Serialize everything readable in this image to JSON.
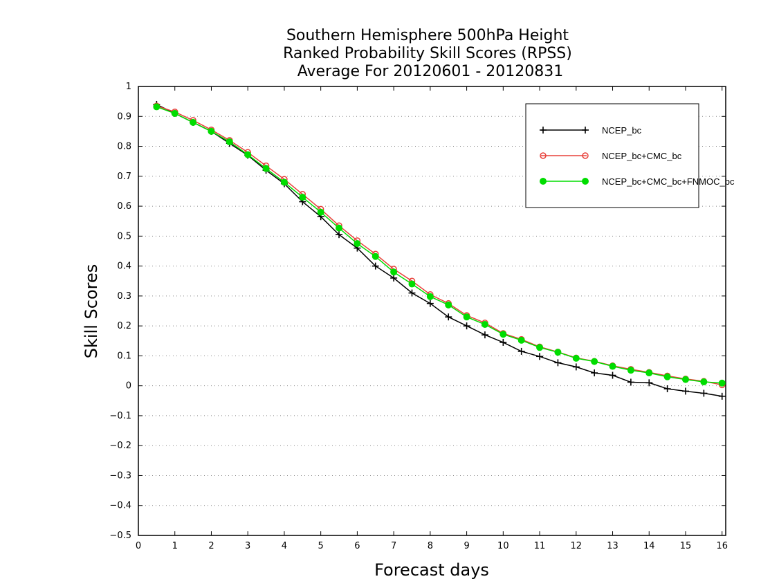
{
  "chart_data": {
    "type": "line",
    "title_lines": [
      "Southern Hemisphere 500hPa Height",
      "Ranked Probability Skill Scores (RPSS)",
      "Average For 20120601 - 20120831"
    ],
    "xlabel": "Forecast days",
    "ylabel": "Skill Scores",
    "xlim": [
      0,
      16.1
    ],
    "ylim": [
      -0.5,
      1
    ],
    "x_ticks": [
      0,
      1,
      2,
      3,
      4,
      5,
      6,
      7,
      8,
      9,
      10,
      11,
      12,
      13,
      14,
      15,
      16
    ],
    "y_ticks": [
      -0.5,
      -0.4,
      -0.3,
      -0.2,
      -0.1,
      0,
      0.1,
      0.2,
      0.3,
      0.4,
      0.5,
      0.6,
      0.7,
      0.8,
      0.9,
      1
    ],
    "y_tick_labels": [
      "−0.5",
      "−0.4",
      "−0.3",
      "−0.2",
      "−0.1",
      "0",
      "0.1",
      "0.2",
      "0.3",
      "0.4",
      "0.5",
      "0.6",
      "0.7",
      "0.8",
      "0.9",
      "1"
    ],
    "grid": "horizontal dotted",
    "legend_position": "top-right",
    "x": [
      0.5,
      1,
      1.5,
      2,
      2.5,
      3,
      3.5,
      4,
      4.5,
      5,
      5.5,
      6,
      6.5,
      7,
      7.5,
      8,
      8.5,
      9,
      9.5,
      10,
      10.5,
      11,
      11.5,
      12,
      12.5,
      13,
      13.5,
      14,
      14.5,
      15,
      15.5,
      16
    ],
    "series": [
      {
        "name": "NCEP_bc",
        "color": "#000000",
        "marker": "plus",
        "values": [
          0.94,
          0.91,
          0.88,
          0.85,
          0.81,
          0.77,
          0.72,
          0.675,
          0.615,
          0.565,
          0.505,
          0.46,
          0.4,
          0.36,
          0.31,
          0.275,
          0.23,
          0.2,
          0.17,
          0.145,
          0.115,
          0.098,
          0.077,
          0.063,
          0.043,
          0.035,
          0.012,
          0.01,
          -0.01,
          -0.018,
          -0.025,
          -0.035
        ]
      },
      {
        "name": "NCEP_bc+CMC_bc",
        "color": "#e8403a",
        "marker": "open-circle",
        "values": [
          0.935,
          0.915,
          0.887,
          0.855,
          0.82,
          0.78,
          0.735,
          0.69,
          0.64,
          0.59,
          0.535,
          0.485,
          0.44,
          0.39,
          0.35,
          0.305,
          0.275,
          0.235,
          0.21,
          0.175,
          0.155,
          0.13,
          0.113,
          0.093,
          0.082,
          0.067,
          0.055,
          0.045,
          0.033,
          0.023,
          0.015,
          0.003
        ]
      },
      {
        "name": "NCEP_bc+CMC_bc+FNMOC_bc",
        "color": "#00dd00",
        "marker": "filled-circle",
        "values": [
          0.932,
          0.91,
          0.88,
          0.85,
          0.815,
          0.772,
          0.726,
          0.68,
          0.63,
          0.58,
          0.527,
          0.475,
          0.432,
          0.38,
          0.34,
          0.298,
          0.27,
          0.23,
          0.205,
          0.172,
          0.152,
          0.128,
          0.112,
          0.092,
          0.081,
          0.065,
          0.052,
          0.043,
          0.03,
          0.021,
          0.013,
          0.009
        ]
      }
    ]
  }
}
